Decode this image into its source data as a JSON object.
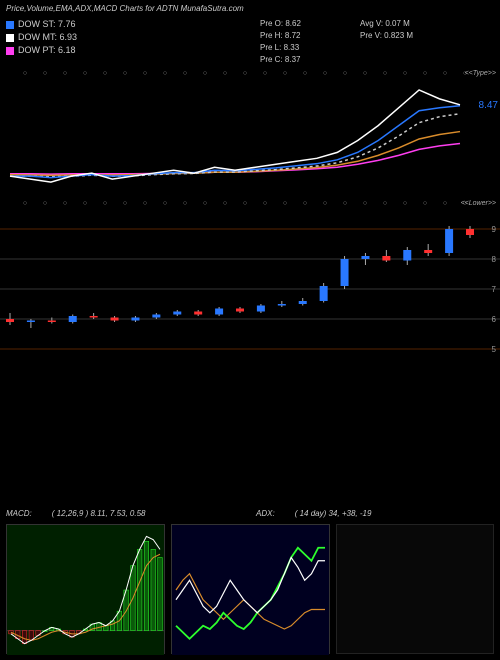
{
  "title_text": "Price,Volume,EMA,ADX,MACD Charts for ADTN   MunafaSutra.com",
  "legend": [
    {
      "color": "#2978ff",
      "label": "DOW ST: 7.76"
    },
    {
      "color": "#ffffff",
      "label": "DOW MT: 6.93"
    },
    {
      "color": "#ff3ef0",
      "label": "DOW PT: 6.18"
    }
  ],
  "info1": [
    "Pre   O: 8.62",
    "Pre   H: 8.72",
    "Pre   L: 8.33",
    "Pre   C: 8.37"
  ],
  "info2": [
    "Avg V: 0.07 M",
    "Pre   V: 0.823 M"
  ],
  "upper": {
    "right_label": "<<Type>>",
    "price_label": "8.47",
    "price_color": "#2978ff",
    "series": {
      "close_white": [
        6.1,
        6.0,
        5.9,
        6.1,
        6.2,
        6.0,
        6.1,
        6.2,
        6.3,
        6.2,
        6.4,
        6.3,
        6.4,
        6.5,
        6.6,
        6.7,
        6.9,
        7.3,
        7.8,
        8.4,
        9.0,
        8.7,
        8.5
      ],
      "ema_blue": [
        6.1,
        6.1,
        6.05,
        6.1,
        6.15,
        6.1,
        6.12,
        6.18,
        6.22,
        6.22,
        6.3,
        6.28,
        6.33,
        6.38,
        6.45,
        6.52,
        6.65,
        6.9,
        7.3,
        7.8,
        8.3,
        8.4,
        8.47
      ],
      "ema_dash": [
        6.1,
        6.1,
        6.08,
        6.1,
        6.13,
        6.1,
        6.11,
        6.15,
        6.18,
        6.19,
        6.24,
        6.24,
        6.28,
        6.32,
        6.38,
        6.44,
        6.55,
        6.75,
        7.05,
        7.45,
        7.9,
        8.1,
        8.2
      ],
      "ema_orange": [
        6.15,
        6.14,
        6.13,
        6.14,
        6.15,
        6.14,
        6.15,
        6.17,
        6.19,
        6.2,
        6.23,
        6.23,
        6.26,
        6.3,
        6.34,
        6.39,
        6.47,
        6.6,
        6.8,
        7.05,
        7.35,
        7.5,
        7.6
      ],
      "ema_magenta": [
        6.18,
        6.18,
        6.17,
        6.18,
        6.18,
        6.18,
        6.18,
        6.19,
        6.2,
        6.21,
        6.23,
        6.23,
        6.25,
        6.28,
        6.31,
        6.35,
        6.4,
        6.5,
        6.63,
        6.8,
        7.0,
        7.12,
        7.2
      ]
    },
    "ymin": 5.5,
    "ymax": 9.2,
    "colors": {
      "close": "#ffffff",
      "blue": "#2978ff",
      "dash": "#cccccc",
      "orange": "#d98c2b",
      "magenta": "#ff3ef0"
    }
  },
  "tick_positions": [
    5,
    9,
    13,
    17,
    21,
    25,
    29,
    33,
    37,
    41,
    45,
    49,
    53,
    57,
    61,
    65,
    69,
    73,
    77,
    81,
    85,
    89,
    93
  ],
  "lower": {
    "right_label": "<<Lower>>",
    "ylines": [
      {
        "v": 9,
        "c": "#552200"
      },
      {
        "v": 8,
        "c": "#333333"
      },
      {
        "v": 7,
        "c": "#333333"
      },
      {
        "v": 6,
        "c": "#333333"
      },
      {
        "v": 5,
        "c": "#552200"
      }
    ],
    "ymin": 4.5,
    "ymax": 9.5,
    "candles": [
      {
        "o": 6.0,
        "h": 6.2,
        "l": 5.8,
        "c": 5.9,
        "col": "r"
      },
      {
        "o": 5.9,
        "h": 6.0,
        "l": 5.7,
        "c": 5.95,
        "col": "b"
      },
      {
        "o": 5.95,
        "h": 6.05,
        "l": 5.85,
        "c": 5.9,
        "col": "r"
      },
      {
        "o": 5.9,
        "h": 6.15,
        "l": 5.85,
        "c": 6.1,
        "col": "b"
      },
      {
        "o": 6.1,
        "h": 6.2,
        "l": 6.0,
        "c": 6.05,
        "col": "r"
      },
      {
        "o": 6.05,
        "h": 6.1,
        "l": 5.9,
        "c": 5.95,
        "col": "r"
      },
      {
        "o": 5.95,
        "h": 6.1,
        "l": 5.9,
        "c": 6.05,
        "col": "b"
      },
      {
        "o": 6.05,
        "h": 6.2,
        "l": 6.0,
        "c": 6.15,
        "col": "b"
      },
      {
        "o": 6.15,
        "h": 6.3,
        "l": 6.1,
        "c": 6.25,
        "col": "b"
      },
      {
        "o": 6.25,
        "h": 6.3,
        "l": 6.1,
        "c": 6.15,
        "col": "r"
      },
      {
        "o": 6.15,
        "h": 6.4,
        "l": 6.1,
        "c": 6.35,
        "col": "b"
      },
      {
        "o": 6.35,
        "h": 6.4,
        "l": 6.2,
        "c": 6.25,
        "col": "r"
      },
      {
        "o": 6.25,
        "h": 6.5,
        "l": 6.2,
        "c": 6.45,
        "col": "b"
      },
      {
        "o": 6.45,
        "h": 6.6,
        "l": 6.4,
        "c": 6.5,
        "col": "b"
      },
      {
        "o": 6.5,
        "h": 6.7,
        "l": 6.45,
        "c": 6.6,
        "col": "b"
      },
      {
        "o": 6.6,
        "h": 7.2,
        "l": 6.55,
        "c": 7.1,
        "col": "b"
      },
      {
        "o": 7.1,
        "h": 8.1,
        "l": 7.0,
        "c": 8.0,
        "col": "b"
      },
      {
        "o": 8.0,
        "h": 8.2,
        "l": 7.8,
        "c": 8.1,
        "col": "b"
      },
      {
        "o": 8.1,
        "h": 8.3,
        "l": 7.9,
        "c": 7.95,
        "col": "r"
      },
      {
        "o": 7.95,
        "h": 8.4,
        "l": 7.8,
        "c": 8.3,
        "col": "b"
      },
      {
        "o": 8.3,
        "h": 8.5,
        "l": 8.1,
        "c": 8.2,
        "col": "r"
      },
      {
        "o": 8.2,
        "h": 9.1,
        "l": 8.1,
        "c": 9.0,
        "col": "b"
      },
      {
        "o": 9.0,
        "h": 9.1,
        "l": 8.7,
        "c": 8.8,
        "col": "r"
      }
    ],
    "colors": {
      "b": "#2978ff",
      "r": "#ff3030",
      "wick": "#aaaaaa"
    }
  },
  "macd": {
    "title": "MACD:",
    "params": "( 12,26,9 ) 8.11,  7.53,  0.58",
    "hist": [
      -0.02,
      -0.05,
      -0.08,
      -0.06,
      -0.03,
      0.0,
      0.02,
      0.01,
      -0.02,
      -0.04,
      -0.02,
      0.01,
      0.04,
      0.05,
      0.03,
      0.06,
      0.12,
      0.25,
      0.4,
      0.5,
      0.55,
      0.5,
      0.45
    ],
    "macd_line": [
      -0.02,
      -0.05,
      -0.08,
      -0.06,
      -0.03,
      0.0,
      0.02,
      0.01,
      -0.02,
      -0.04,
      -0.02,
      0.01,
      0.04,
      0.05,
      0.03,
      0.06,
      0.12,
      0.25,
      0.4,
      0.5,
      0.58,
      0.56,
      0.5
    ],
    "sig_line": [
      -0.01,
      -0.03,
      -0.05,
      -0.06,
      -0.05,
      -0.03,
      -0.01,
      0.0,
      -0.01,
      -0.02,
      -0.02,
      -0.01,
      0.01,
      0.02,
      0.03,
      0.04,
      0.06,
      0.12,
      0.2,
      0.3,
      0.4,
      0.45,
      0.47
    ],
    "ymin": -0.15,
    "ymax": 0.65,
    "colors": {
      "pos": "#0a5a0a",
      "neg": "#3a0a0a",
      "posb": "#2dff2d",
      "negb": "#ff3030",
      "macd": "#ffffff",
      "sig": "#d98c2b",
      "bg": "#002000"
    }
  },
  "adx": {
    "title": "ADX:",
    "params": "( 14   day) 34,  +38,  -19",
    "adx": [
      22,
      25,
      28,
      24,
      20,
      18,
      20,
      24,
      28,
      25,
      22,
      20,
      18,
      20,
      22,
      25,
      30,
      35,
      32,
      28,
      30,
      34,
      34
    ],
    "pdi": [
      14,
      12,
      10,
      12,
      14,
      13,
      15,
      18,
      16,
      14,
      13,
      15,
      18,
      20,
      22,
      26,
      30,
      35,
      38,
      36,
      34,
      38,
      38
    ],
    "mdi": [
      25,
      28,
      30,
      26,
      22,
      20,
      18,
      16,
      18,
      20,
      22,
      20,
      18,
      16,
      15,
      14,
      13,
      14,
      16,
      18,
      19,
      19,
      19
    ],
    "ymin": 5,
    "ymax": 45,
    "colors": {
      "adx": "#ffffff",
      "pdi": "#2dff2d",
      "mdi": "#d98c2b",
      "bg": "#000020"
    }
  }
}
